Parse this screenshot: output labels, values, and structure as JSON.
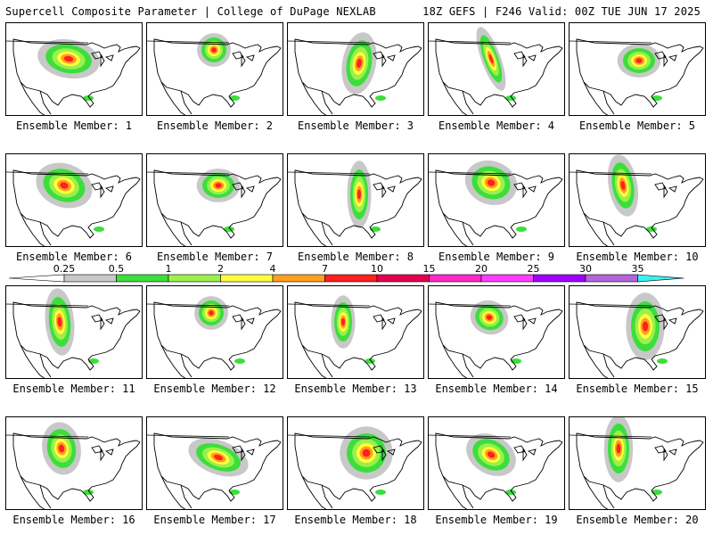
{
  "header": {
    "left": "Supercell Composite Parameter | College of DuPage NEXLAB",
    "right": "18Z GEFS | F246 Valid: 00Z TUE JUN 17 2025"
  },
  "members": [
    {
      "label": "Ensemble Member: 1",
      "focus": "north-central plains"
    },
    {
      "label": "Ensemble Member: 2",
      "focus": "minnesota"
    },
    {
      "label": "Ensemble Member: 3",
      "focus": "central plains"
    },
    {
      "label": "Ensemble Member: 4",
      "focus": "northern plains band"
    },
    {
      "label": "Ensemble Member: 5",
      "focus": "upper midwest"
    },
    {
      "label": "Ensemble Member: 6",
      "focus": "northern plains"
    },
    {
      "label": "Ensemble Member: 7",
      "focus": "upper midwest"
    },
    {
      "label": "Ensemble Member: 8",
      "focus": "central plains band"
    },
    {
      "label": "Ensemble Member: 9",
      "focus": "minnesota iowa"
    },
    {
      "label": "Ensemble Member: 10",
      "focus": "upper midwest"
    },
    {
      "label": "Ensemble Member: 11",
      "focus": "northern plains"
    },
    {
      "label": "Ensemble Member: 12",
      "focus": "minnesota"
    },
    {
      "label": "Ensemble Member: 13",
      "focus": "central plains"
    },
    {
      "label": "Ensemble Member: 14",
      "focus": "upper midwest"
    },
    {
      "label": "Ensemble Member: 15",
      "focus": "mississippi valley"
    },
    {
      "label": "Ensemble Member: 16",
      "focus": "northern plains"
    },
    {
      "label": "Ensemble Member: 17",
      "focus": "midwest"
    },
    {
      "label": "Ensemble Member: 18",
      "focus": "central plains"
    },
    {
      "label": "Ensemble Member: 19",
      "focus": "central plains"
    },
    {
      "label": "Ensemble Member: 20",
      "focus": "northern plains band"
    }
  ],
  "colorbar": {
    "labels": [
      "0.25",
      "0.5",
      "1",
      "2",
      "4",
      "7",
      "10",
      "15",
      "20",
      "25",
      "30",
      "35"
    ],
    "colors": [
      "#c8c8c8",
      "#3cde3c",
      "#9bf04b",
      "#ffff3c",
      "#ff9f1e",
      "#ff2020",
      "#e60050",
      "#ff28c8",
      "#ff3cff",
      "#a000ff",
      "#b464dc",
      "#3cf0f0"
    ]
  }
}
